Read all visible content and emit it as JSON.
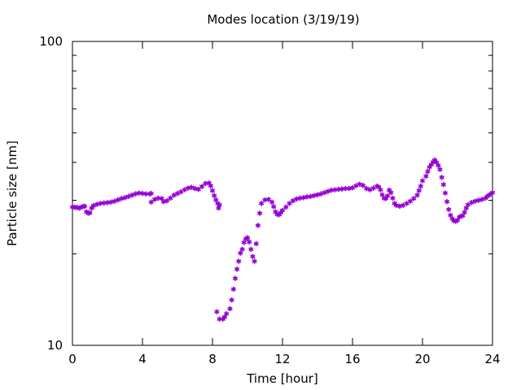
{
  "chart_data": {
    "type": "scatter",
    "title": "Modes location (3/19/19)",
    "xlabel": "Time [hour]",
    "ylabel": "Particle size [nm]",
    "xlim": [
      0,
      24
    ],
    "ylim": [
      10,
      100
    ],
    "y_scale": "log",
    "grid": false,
    "legend": "none",
    "x_ticks": [
      0,
      4,
      8,
      12,
      16,
      20,
      24
    ],
    "y_ticks": [
      10,
      100
    ],
    "marker_color": "#9400d3",
    "series": [
      {
        "points": [
          [
            0.0,
            28.5
          ],
          [
            0.1,
            28.5
          ],
          [
            0.2,
            28.4
          ],
          [
            0.3,
            28.4
          ],
          [
            0.4,
            28.3
          ],
          [
            0.5,
            28.5
          ],
          [
            0.6,
            28.6
          ],
          [
            0.7,
            28.7
          ],
          [
            0.8,
            27.5
          ],
          [
            0.9,
            27.2
          ],
          [
            1.0,
            27.3
          ],
          [
            1.1,
            28.3
          ],
          [
            1.2,
            28.8
          ],
          [
            1.4,
            29.1
          ],
          [
            1.6,
            29.3
          ],
          [
            1.8,
            29.4
          ],
          [
            2.0,
            29.5
          ],
          [
            2.2,
            29.6
          ],
          [
            2.4,
            29.8
          ],
          [
            2.6,
            30.1
          ],
          [
            2.8,
            30.4
          ],
          [
            3.0,
            30.6
          ],
          [
            3.2,
            30.9
          ],
          [
            3.4,
            31.2
          ],
          [
            3.6,
            31.5
          ],
          [
            3.8,
            31.7
          ],
          [
            4.0,
            31.6
          ],
          [
            4.2,
            31.5
          ],
          [
            4.4,
            31.5
          ],
          [
            4.5,
            31.6
          ],
          [
            4.5,
            29.6
          ],
          [
            4.7,
            30.2
          ],
          [
            4.9,
            30.5
          ],
          [
            5.1,
            30.4
          ],
          [
            5.2,
            29.7
          ],
          [
            5.4,
            29.9
          ],
          [
            5.6,
            30.5
          ],
          [
            5.8,
            31.2
          ],
          [
            6.0,
            31.6
          ],
          [
            6.2,
            32.0
          ],
          [
            6.4,
            32.5
          ],
          [
            6.6,
            32.9
          ],
          [
            6.8,
            33.1
          ],
          [
            7.0,
            32.8
          ],
          [
            7.2,
            32.6
          ],
          [
            7.4,
            33.3
          ],
          [
            7.6,
            34.1
          ],
          [
            7.8,
            34.2
          ],
          [
            7.9,
            33.5
          ],
          [
            8.0,
            32.3
          ],
          [
            8.1,
            31.1
          ],
          [
            8.2,
            30.1
          ],
          [
            8.3,
            29.3
          ],
          [
            8.4,
            29.0
          ],
          [
            8.35,
            28.3
          ],
          [
            8.25,
            12.9
          ],
          [
            8.4,
            12.2
          ],
          [
            8.6,
            12.2
          ],
          [
            8.7,
            12.4
          ],
          [
            8.8,
            12.7
          ],
          [
            9.0,
            13.2
          ],
          [
            9.1,
            14.1
          ],
          [
            9.2,
            15.3
          ],
          [
            9.3,
            16.6
          ],
          [
            9.4,
            17.8
          ],
          [
            9.5,
            18.9
          ],
          [
            9.6,
            20.1
          ],
          [
            9.7,
            20.7
          ],
          [
            9.8,
            21.8
          ],
          [
            9.9,
            22.4
          ],
          [
            10.0,
            22.6
          ],
          [
            10.1,
            21.9
          ],
          [
            10.2,
            20.7
          ],
          [
            10.3,
            19.6
          ],
          [
            10.4,
            18.9
          ],
          [
            10.5,
            21.6
          ],
          [
            10.6,
            24.8
          ],
          [
            10.7,
            27.2
          ],
          [
            10.8,
            29.3
          ],
          [
            11.0,
            30.1
          ],
          [
            11.2,
            30.2
          ],
          [
            11.4,
            29.6
          ],
          [
            11.5,
            28.6
          ],
          [
            11.6,
            27.5
          ],
          [
            11.7,
            27.0
          ],
          [
            11.8,
            26.9
          ],
          [
            11.9,
            27.3
          ],
          [
            12.0,
            27.8
          ],
          [
            12.2,
            28.5
          ],
          [
            12.4,
            29.3
          ],
          [
            12.6,
            29.9
          ],
          [
            12.8,
            30.3
          ],
          [
            13.0,
            30.5
          ],
          [
            13.2,
            30.6
          ],
          [
            13.4,
            30.8
          ],
          [
            13.6,
            30.9
          ],
          [
            13.8,
            31.1
          ],
          [
            14.0,
            31.3
          ],
          [
            14.2,
            31.5
          ],
          [
            14.4,
            31.8
          ],
          [
            14.6,
            32.1
          ],
          [
            14.8,
            32.4
          ],
          [
            15.0,
            32.5
          ],
          [
            15.2,
            32.6
          ],
          [
            15.4,
            32.7
          ],
          [
            15.6,
            32.8
          ],
          [
            15.8,
            32.8
          ],
          [
            16.0,
            33.0
          ],
          [
            16.2,
            33.5
          ],
          [
            16.4,
            33.9
          ],
          [
            16.6,
            33.6
          ],
          [
            16.8,
            32.8
          ],
          [
            17.0,
            32.5
          ],
          [
            17.2,
            32.9
          ],
          [
            17.4,
            33.4
          ],
          [
            17.5,
            33.2
          ],
          [
            17.6,
            32.5
          ],
          [
            17.7,
            31.3
          ],
          [
            17.8,
            30.5
          ],
          [
            17.9,
            30.4
          ],
          [
            18.0,
            31.0
          ],
          [
            18.1,
            32.4
          ],
          [
            18.2,
            31.8
          ],
          [
            18.3,
            30.5
          ],
          [
            18.4,
            29.3
          ],
          [
            18.5,
            28.9
          ],
          [
            18.7,
            28.7
          ],
          [
            18.9,
            28.9
          ],
          [
            19.1,
            29.3
          ],
          [
            19.3,
            29.8
          ],
          [
            19.5,
            30.4
          ],
          [
            19.7,
            31.2
          ],
          [
            19.8,
            32.3
          ],
          [
            19.9,
            33.4
          ],
          [
            20.0,
            34.8
          ],
          [
            20.2,
            36.0
          ],
          [
            20.3,
            37.3
          ],
          [
            20.4,
            38.6
          ],
          [
            20.5,
            39.3
          ],
          [
            20.6,
            40.1
          ],
          [
            20.7,
            40.7
          ],
          [
            20.8,
            40.0
          ],
          [
            20.9,
            39.1
          ],
          [
            21.0,
            37.9
          ],
          [
            21.1,
            35.7
          ],
          [
            21.2,
            33.8
          ],
          [
            21.3,
            31.7
          ],
          [
            21.4,
            29.7
          ],
          [
            21.5,
            28.0
          ],
          [
            21.6,
            26.8
          ],
          [
            21.7,
            26.1
          ],
          [
            21.8,
            25.7
          ],
          [
            21.9,
            25.6
          ],
          [
            22.0,
            25.8
          ],
          [
            22.1,
            26.4
          ],
          [
            22.2,
            26.6
          ],
          [
            22.3,
            26.7
          ],
          [
            22.4,
            27.4
          ],
          [
            22.5,
            28.3
          ],
          [
            22.6,
            29.0
          ],
          [
            22.8,
            29.5
          ],
          [
            23.0,
            29.8
          ],
          [
            23.2,
            30.0
          ],
          [
            23.4,
            30.2
          ],
          [
            23.6,
            30.5
          ],
          [
            23.7,
            30.9
          ],
          [
            23.8,
            31.2
          ],
          [
            23.9,
            31.5
          ],
          [
            24.0,
            31.8
          ]
        ]
      }
    ]
  }
}
